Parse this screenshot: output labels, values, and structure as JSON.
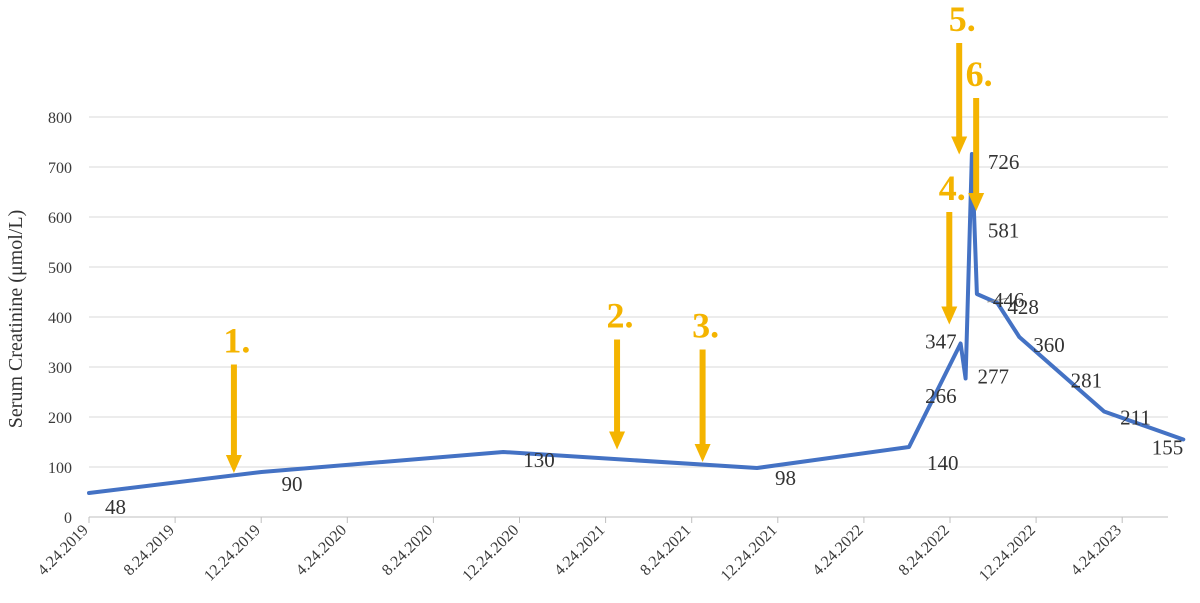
{
  "chart_data": {
    "type": "line",
    "title": "",
    "xlabel": "",
    "ylabel": "Serum Creatinine (μmol/L)",
    "ylim": [
      0,
      800
    ],
    "yticks": [
      0,
      100,
      200,
      300,
      400,
      500,
      600,
      700,
      800
    ],
    "xticks": [
      "4.24.2019",
      "8.24.2019",
      "12.24.2019",
      "4.24.2020",
      "8.24.2020",
      "12.24.2020",
      "4.24.2021",
      "8.24.2021",
      "12.24.2021",
      "4.24.2022",
      "8.24.2022",
      "12.24.2022",
      "4.24.2023"
    ],
    "grid": true,
    "legend": "none",
    "line_color": "#4472c4",
    "annotation_color": "#f4b400",
    "series": [
      {
        "x": [
          "2019-04-24",
          "2019-12-24",
          "2020-11-30",
          "2021-11-24",
          "2022-06-27",
          "2022-09-08",
          "2022-09-15",
          "2022-09-24",
          "2022-10-01",
          "2022-10-30",
          "2022-11-30",
          "2023-03-30",
          "2023-07-20"
        ],
        "values": [
          48,
          90,
          130,
          98,
          140,
          347,
          277,
          726,
          446,
          428,
          360,
          211,
          155
        ]
      }
    ],
    "data_labels": [
      {
        "text": "48",
        "date": "2019-04-24",
        "value": 48,
        "anchor": "start",
        "dx": 16,
        "dy": 14
      },
      {
        "text": "90",
        "date": "2019-12-24",
        "value": 90,
        "anchor": "start",
        "dx": 20,
        "dy": 12
      },
      {
        "text": "130",
        "date": "2020-11-30",
        "value": 130,
        "anchor": "start",
        "dx": 20,
        "dy": 8
      },
      {
        "text": "98",
        "date": "2021-11-24",
        "value": 98,
        "anchor": "start",
        "dx": 18,
        "dy": 10
      },
      {
        "text": "140",
        "date": "2022-06-27",
        "value": 140,
        "anchor": "start",
        "dx": 18,
        "dy": 16
      },
      {
        "text": "347",
        "date": "2022-09-08",
        "value": 347,
        "anchor": "end",
        "dx": -4,
        "dy": -2
      },
      {
        "text": "266",
        "date": "2022-09-08",
        "value": 266,
        "anchor": "end",
        "dx": -4,
        "dy": 12
      },
      {
        "text": "277",
        "date": "2022-09-15",
        "value": 277,
        "anchor": "start",
        "dx": 12,
        "dy": -2
      },
      {
        "text": "726",
        "date": "2022-09-24",
        "value": 726,
        "anchor": "start",
        "dx": 16,
        "dy": 8
      },
      {
        "text": "581",
        "date": "2022-09-24",
        "value": 581,
        "anchor": "start",
        "dx": 16,
        "dy": 4
      },
      {
        "text": "446",
        "date": "2022-10-01",
        "value": 446,
        "anchor": "start",
        "dx": 16,
        "dy": 6
      },
      {
        "text": "428",
        "date": "2022-10-30",
        "value": 428,
        "anchor": "start",
        "dx": 10,
        "dy": 4
      },
      {
        "text": "360",
        "date": "2022-11-30",
        "value": 360,
        "anchor": "start",
        "dx": 14,
        "dy": 8
      },
      {
        "text": "281",
        "date": "2023-03-30",
        "value": 281,
        "anchor": "end",
        "dx": -2,
        "dy": 4
      },
      {
        "text": "211",
        "date": "2023-03-30",
        "value": 211,
        "anchor": "start",
        "dx": 16,
        "dy": 6
      },
      {
        "text": "155",
        "date": "2023-07-20",
        "value": 155,
        "anchor": "end",
        "dx": 0,
        "dy": 8
      }
    ],
    "annotations": [
      {
        "label": "1.",
        "date": "2019-11-15",
        "arrow_from": 305,
        "arrow_to": 88
      },
      {
        "label": "2.",
        "date": "2021-05-10",
        "arrow_from": 355,
        "arrow_to": 135
      },
      {
        "label": "3.",
        "date": "2021-09-08",
        "arrow_from": 335,
        "arrow_to": 110
      },
      {
        "label": "4.",
        "date": "2022-08-23",
        "arrow_from": 610,
        "arrow_to": 385
      },
      {
        "label": "5.",
        "date": "2022-09-06",
        "arrow_from": 948,
        "arrow_to": 725
      },
      {
        "label": "6.",
        "date": "2022-09-30",
        "arrow_from": 838,
        "arrow_to": 612
      }
    ]
  }
}
